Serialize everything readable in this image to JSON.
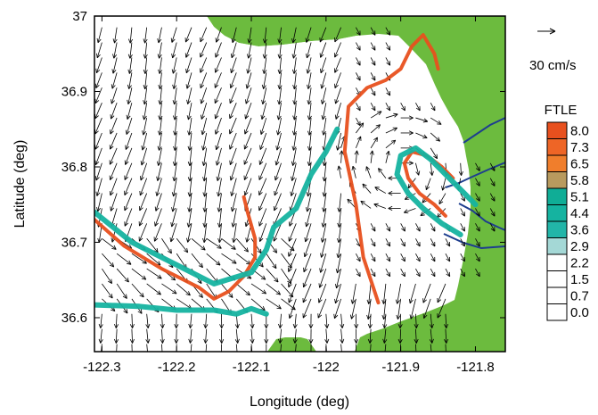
{
  "chart_data": {
    "type": "vector-field-map",
    "xlabel": "Longitude (deg)",
    "ylabel": "Latitude (deg)",
    "xlim": [
      -122.31,
      -121.76
    ],
    "ylim": [
      36.555,
      37.0
    ],
    "xticks": [
      -122.3,
      -122.2,
      -122.1,
      -122.0,
      -121.9,
      -121.8
    ],
    "xtick_labels": [
      "-122.3",
      "-122.2",
      "-122.1",
      "-122",
      "-121.9",
      "-121.8"
    ],
    "yticks": [
      36.6,
      36.7,
      36.8,
      36.9,
      37.0
    ],
    "ytick_labels": [
      "36.6",
      "36.7",
      "36.8",
      "36.9",
      "37"
    ],
    "vector_scale_label": "30 cm/s",
    "colorbar": {
      "title": "FTLE",
      "levels": [
        "8.0",
        "7.3",
        "6.5",
        "5.8",
        "5.1",
        "4.4",
        "3.6",
        "2.9",
        "2.2",
        "1.5",
        "0.7",
        "0.0"
      ],
      "colors": [
        "#e8501e",
        "#ee6526",
        "#f07e2c",
        "#b89a5e",
        "#10ad96",
        "#15b3a0",
        "#22b5a8",
        "#a4d8d6",
        "#ffffff",
        "#ffffff",
        "#ffffff",
        "#ffffff"
      ]
    },
    "ridges": [
      {
        "name": "",
        "color": "#e8501e",
        "points": [
          [
            -122.31,
            36.73
          ],
          [
            -122.27,
            36.695
          ],
          [
            -122.22,
            36.665
          ],
          [
            -122.17,
            36.64
          ],
          [
            -122.15,
            36.625
          ],
          [
            -122.13,
            36.635
          ],
          [
            -122.11,
            36.655
          ],
          [
            -122.095,
            36.68
          ],
          [
            -122.095,
            36.705
          ],
          [
            -122.105,
            36.74
          ],
          [
            -122.11,
            36.76
          ]
        ]
      },
      {
        "name": "",
        "color": "#e8501e",
        "points": [
          [
            -121.93,
            36.62
          ],
          [
            -121.95,
            36.68
          ],
          [
            -121.96,
            36.75
          ],
          [
            -121.975,
            36.82
          ],
          [
            -121.97,
            36.88
          ],
          [
            -121.945,
            36.905
          ],
          [
            -121.92,
            36.915
          ],
          [
            -121.9,
            36.93
          ],
          [
            -121.885,
            36.96
          ],
          [
            -121.87,
            36.975
          ],
          [
            -121.855,
            36.95
          ],
          [
            -121.85,
            36.93
          ]
        ]
      },
      {
        "name": "",
        "color": "#e8501e",
        "points": [
          [
            -121.84,
            36.735
          ],
          [
            -121.855,
            36.75
          ],
          [
            -121.875,
            36.765
          ],
          [
            -121.89,
            36.785
          ],
          [
            -121.895,
            36.805
          ],
          [
            -121.885,
            36.82
          ],
          [
            -121.865,
            36.815
          ],
          [
            -121.845,
            36.8
          ],
          [
            -121.83,
            36.785
          ]
        ]
      },
      {
        "name": "",
        "color": "#15b3a0",
        "points": [
          [
            -122.31,
            36.74
          ],
          [
            -122.26,
            36.7
          ],
          [
            -122.2,
            36.67
          ],
          [
            -122.15,
            36.645
          ],
          [
            -122.1,
            36.66
          ],
          [
            -122.08,
            36.69
          ],
          [
            -122.07,
            36.72
          ],
          [
            -122.04,
            36.745
          ],
          [
            -122.02,
            36.79
          ],
          [
            -122.0,
            36.82
          ],
          [
            -121.985,
            36.85
          ]
        ]
      },
      {
        "name": "",
        "color": "#15b3a0",
        "points": [
          [
            -121.8,
            36.75
          ],
          [
            -121.82,
            36.77
          ],
          [
            -121.84,
            36.79
          ],
          [
            -121.86,
            36.81
          ],
          [
            -121.88,
            36.825
          ],
          [
            -121.9,
            36.815
          ],
          [
            -121.905,
            36.79
          ],
          [
            -121.89,
            36.765
          ],
          [
            -121.87,
            36.745
          ],
          [
            -121.845,
            36.725
          ],
          [
            -121.82,
            36.71
          ]
        ]
      },
      {
        "name": "",
        "color": "#15b3a0",
        "points": [
          [
            -122.31,
            36.617
          ],
          [
            -122.25,
            36.615
          ],
          [
            -122.2,
            36.61
          ],
          [
            -122.15,
            36.61
          ],
          [
            -122.12,
            36.605
          ],
          [
            -122.1,
            36.612
          ],
          [
            -122.08,
            36.605
          ]
        ]
      }
    ],
    "vector_field": {
      "lon_start": -122.3,
      "lon_step": 0.02,
      "lon_count": 28,
      "lat_start": 36.565,
      "lat_step": 0.02,
      "lat_count": 22
    }
  }
}
